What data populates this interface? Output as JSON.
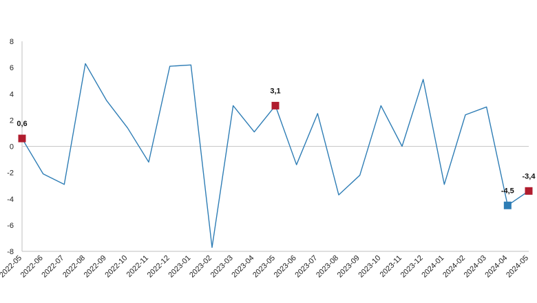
{
  "chart_data": {
    "type": "line",
    "categories": [
      "2022-05",
      "2022-06",
      "2022-07",
      "2022-08",
      "2022-09",
      "2022-10",
      "2022-11",
      "2022-12",
      "2023-01",
      "2023-02",
      "2023-03",
      "2023-04",
      "2023-05",
      "2023-06",
      "2023-07",
      "2023-08",
      "2023-09",
      "2023-10",
      "2023-11",
      "2023-12",
      "2024-01",
      "2024-02",
      "2024-03",
      "2024-04",
      "2024-05"
    ],
    "series": [
      {
        "values": [
          0.6,
          -2.1,
          -2.9,
          6.3,
          3.5,
          1.4,
          -1.2,
          6.1,
          6.2,
          -7.7,
          3.1,
          1.1,
          3.1,
          -1.4,
          2.5,
          -3.7,
          -2.2,
          3.1,
          0.0,
          5.1,
          -2.9,
          2.4,
          3.0,
          -4.5,
          -3.4
        ],
        "color": "#2e7db5"
      }
    ],
    "ylim": [
      -8,
      8
    ],
    "yticks": [
      -8,
      -6,
      -4,
      -2,
      0,
      2,
      4,
      6,
      8
    ],
    "grid": "zero-line-only",
    "legend": "none",
    "highlighted_points": [
      {
        "index": 0,
        "label": "0,6",
        "color": "#b01c2e"
      },
      {
        "index": 12,
        "label": "3,1",
        "color": "#b01c2e"
      },
      {
        "index": 23,
        "label": "-4,5",
        "color": "#2e7db5"
      },
      {
        "index": 24,
        "label": "-3,4",
        "color": "#b01c2e"
      }
    ],
    "title": "",
    "xlabel": "",
    "ylabel": ""
  }
}
